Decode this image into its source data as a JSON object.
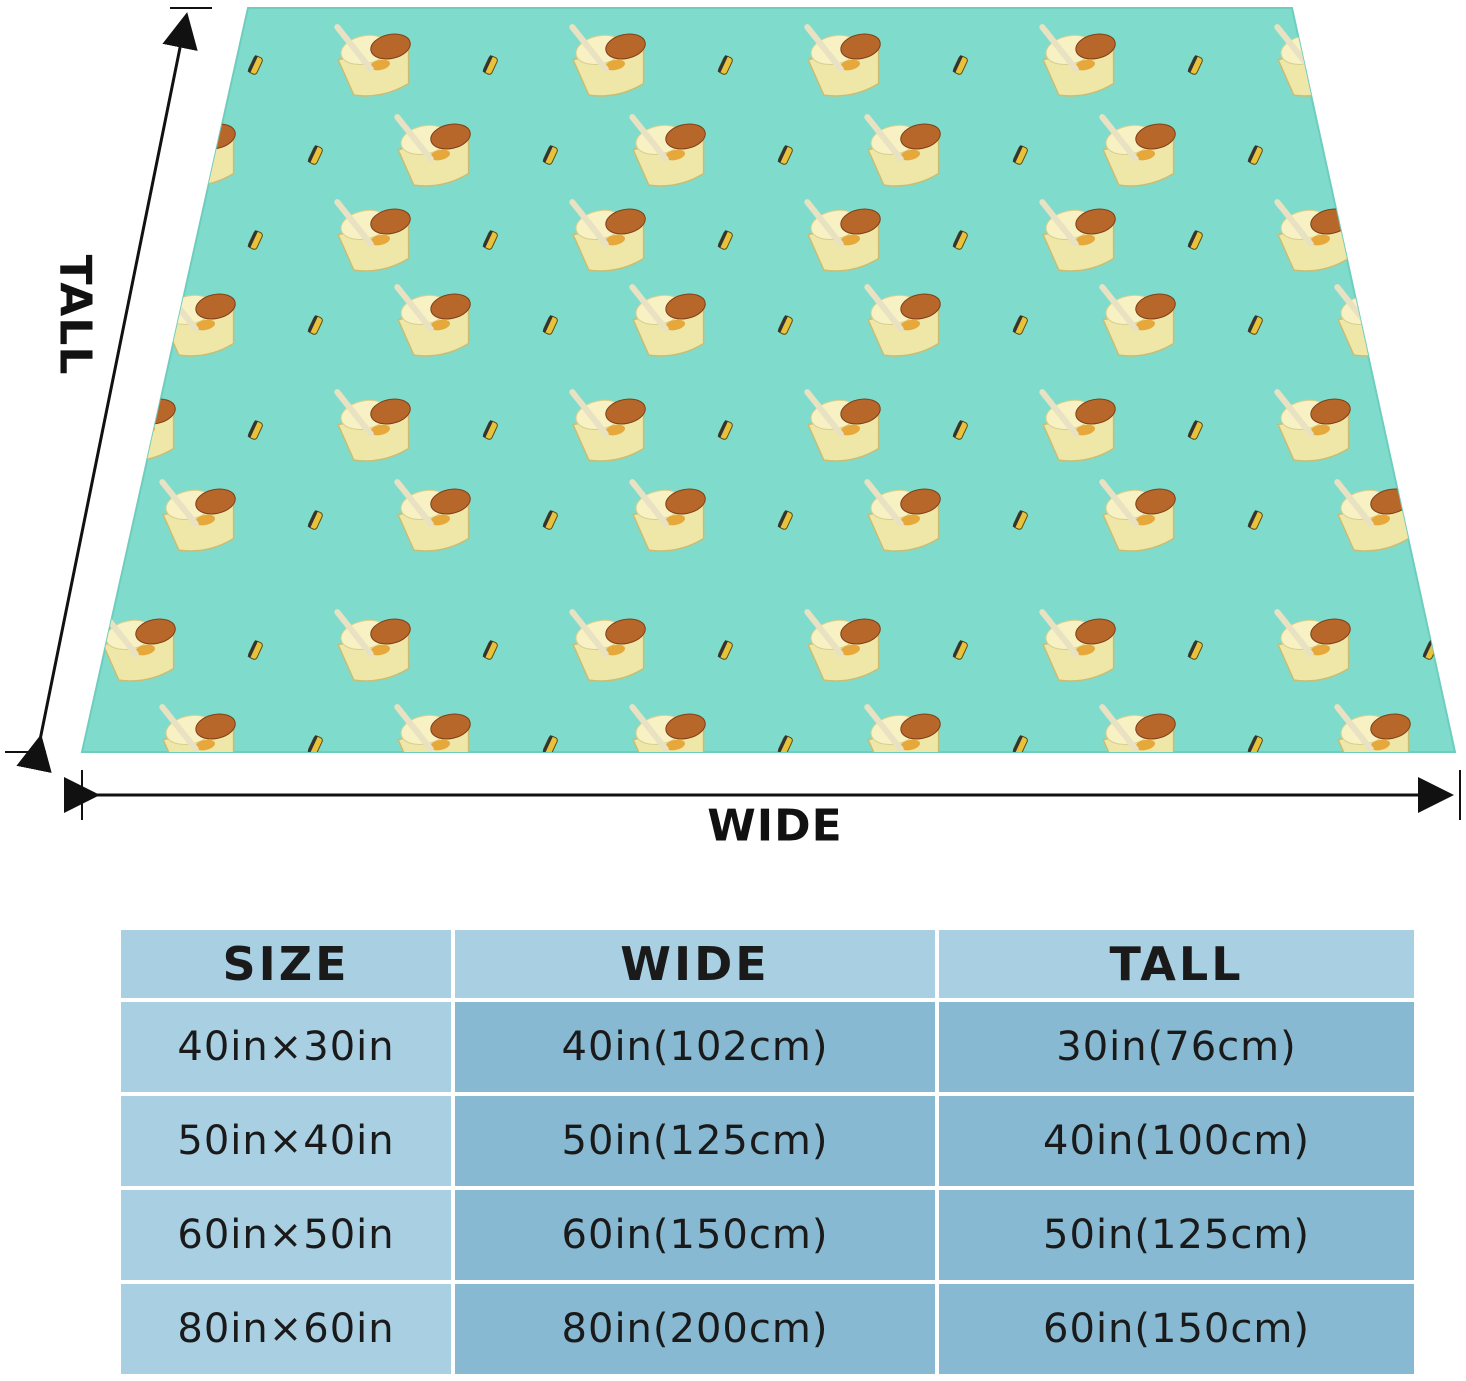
{
  "dimension_labels": {
    "tall": "TALL",
    "wide": "WIDE"
  },
  "blanket": {
    "background_color": "#7fdccc",
    "pattern": [
      "ice-cream-sundae-icon",
      "popsicle-icon"
    ]
  },
  "size_table": {
    "headers": [
      "SIZE",
      "WIDE",
      "TALL"
    ],
    "rows": [
      [
        "40in×30in",
        "40in(102cm)",
        "30in(76cm)"
      ],
      [
        "50in×40in",
        "50in(125cm)",
        "40in(100cm)"
      ],
      [
        "60in×50in",
        "60in(150cm)",
        "50in(125cm)"
      ],
      [
        "80in×60in",
        "80in(200cm)",
        "60in(150cm)"
      ]
    ]
  },
  "colors": {
    "header_cell": "#a9cfe3",
    "size_cell": "#a9cfe3",
    "value_cell": "#88b9d2",
    "text": "#1a1a1a"
  }
}
